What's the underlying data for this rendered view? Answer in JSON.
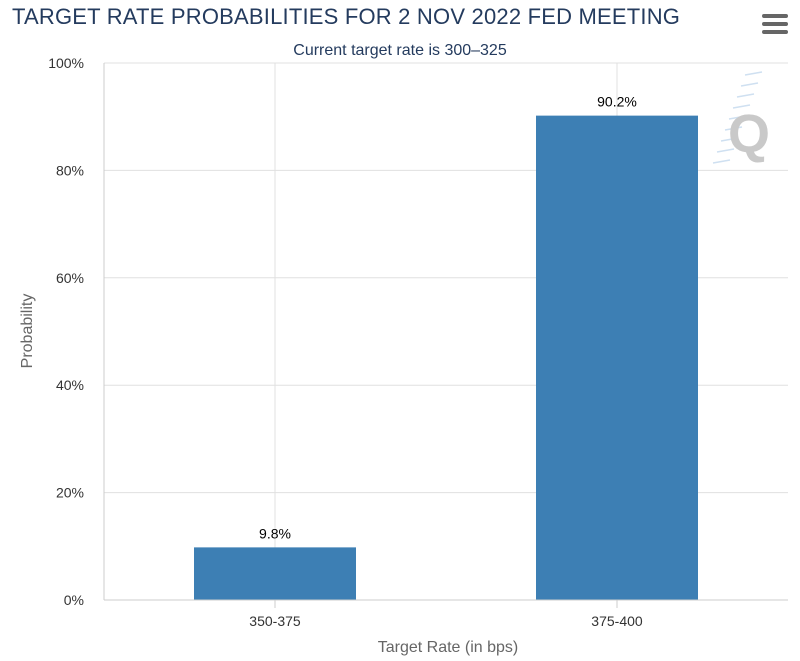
{
  "chart": {
    "title": "TARGET RATE PROBABILITIES FOR 2 NOV 2022 FED MEETING",
    "subtitle": "Current target rate is 300–325",
    "menu_icon": "hamburger-menu-icon",
    "watermark_icon": "cme-q-logo-icon"
  },
  "chart_data": {
    "type": "bar",
    "categories": [
      "350-375",
      "375-400"
    ],
    "values": [
      9.8,
      90.2
    ],
    "data_labels": [
      "9.8%",
      "90.2%"
    ],
    "title": "TARGET RATE PROBABILITIES FOR 2 NOV 2022 FED MEETING",
    "subtitle": "Current target rate is 300–325",
    "xlabel": "Target Rate (in bps)",
    "ylabel": "Probability",
    "ylim": [
      0,
      100
    ],
    "yticks": [
      "0%",
      "20%",
      "40%",
      "60%",
      "80%",
      "100%"
    ],
    "grid": true,
    "bar_color": "#3d7fb4"
  }
}
